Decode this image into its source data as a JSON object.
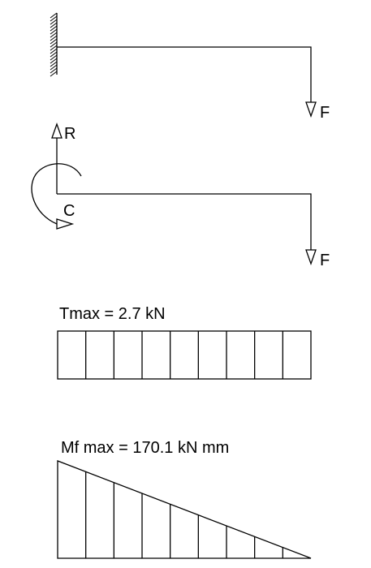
{
  "colors": {
    "stroke": "#000000",
    "background": "#ffffff"
  },
  "beam": {
    "force_label": "F"
  },
  "free_body": {
    "reaction_label": "R",
    "couple_label": "C",
    "force_label": "F"
  },
  "shear": {
    "label": "Tmax = 2.7 kN",
    "divisions": 9
  },
  "moment": {
    "label": "Mf max = 170.1 kN mm",
    "divisions": 9
  }
}
